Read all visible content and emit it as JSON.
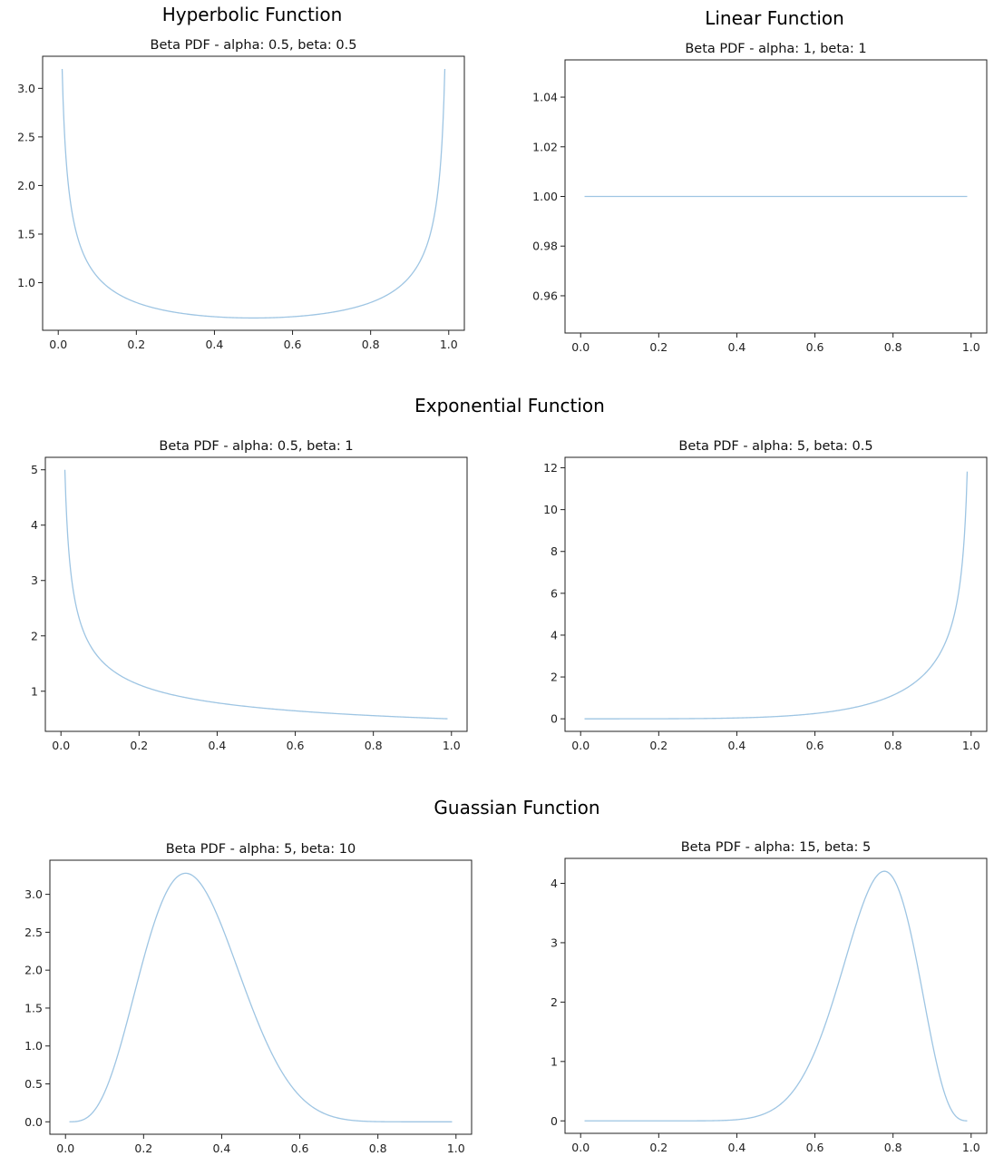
{
  "headings": {
    "hyperbolic": "Hyperbolic Function",
    "linear": "Linear Function",
    "exponential": "Exponential Function",
    "gaussian": "Guassian Function"
  },
  "colors": {
    "line": "#9ec5e3",
    "axes": "#222222"
  },
  "chart_data": [
    {
      "type": "line",
      "title": "Beta PDF - alpha: 0.5, beta: 0.5",
      "alpha": 0.5,
      "beta": 0.5,
      "xlabel": "",
      "ylabel": "",
      "x_range": [
        0.01,
        0.99
      ],
      "xlim": [
        -0.04,
        1.04
      ],
      "ylim": [
        0.51,
        3.33
      ],
      "xticks": [
        0.0,
        0.2,
        0.4,
        0.6,
        0.8,
        1.0
      ],
      "xtick_labels": [
        "0.0",
        "0.2",
        "0.4",
        "0.6",
        "0.8",
        "1.0"
      ],
      "yticks": [
        1.0,
        1.5,
        2.0,
        2.5,
        3.0
      ],
      "ytick_labels": [
        "1.0",
        "1.5",
        "2.0",
        "2.5",
        "3.0"
      ],
      "grid": false
    },
    {
      "type": "line",
      "title": "Beta PDF - alpha: 1, beta: 1",
      "alpha": 1,
      "beta": 1,
      "xlabel": "",
      "ylabel": "",
      "x_range": [
        0.01,
        0.99
      ],
      "xlim": [
        -0.04,
        1.04
      ],
      "ylim": [
        0.945,
        1.055
      ],
      "xticks": [
        0.0,
        0.2,
        0.4,
        0.6,
        0.8,
        1.0
      ],
      "xtick_labels": [
        "0.0",
        "0.2",
        "0.4",
        "0.6",
        "0.8",
        "1.0"
      ],
      "yticks": [
        0.96,
        0.98,
        1.0,
        1.02,
        1.04
      ],
      "ytick_labels": [
        "0.96",
        "0.98",
        "1.00",
        "1.02",
        "1.04"
      ],
      "grid": false
    },
    {
      "type": "line",
      "title": "Beta PDF - alpha: 0.5, beta: 1",
      "alpha": 0.5,
      "beta": 1,
      "xlabel": "",
      "ylabel": "",
      "x_range": [
        0.01,
        0.99
      ],
      "xlim": [
        -0.04,
        1.04
      ],
      "ylim": [
        0.275,
        5.225
      ],
      "xticks": [
        0.0,
        0.2,
        0.4,
        0.6,
        0.8,
        1.0
      ],
      "xtick_labels": [
        "0.0",
        "0.2",
        "0.4",
        "0.6",
        "0.8",
        "1.0"
      ],
      "yticks": [
        1,
        2,
        3,
        4,
        5
      ],
      "ytick_labels": [
        "1",
        "2",
        "3",
        "4",
        "5"
      ],
      "grid": false
    },
    {
      "type": "line",
      "title": "Beta PDF - alpha: 5, beta: 0.5",
      "alpha": 5,
      "beta": 0.5,
      "xlabel": "",
      "ylabel": "",
      "x_range": [
        0.01,
        0.99
      ],
      "xlim": [
        -0.04,
        1.04
      ],
      "ylim": [
        -0.6,
        12.5
      ],
      "xticks": [
        0.0,
        0.2,
        0.4,
        0.6,
        0.8,
        1.0
      ],
      "xtick_labels": [
        "0.0",
        "0.2",
        "0.4",
        "0.6",
        "0.8",
        "1.0"
      ],
      "yticks": [
        0,
        2,
        4,
        6,
        8,
        10,
        12
      ],
      "ytick_labels": [
        "0",
        "2",
        "4",
        "6",
        "8",
        "10",
        "12"
      ],
      "grid": false
    },
    {
      "type": "line",
      "title": "Beta PDF - alpha: 5, beta: 10",
      "alpha": 5,
      "beta": 10,
      "xlabel": "",
      "ylabel": "",
      "x_range": [
        0.01,
        0.99
      ],
      "xlim": [
        -0.04,
        1.04
      ],
      "ylim": [
        -0.164,
        3.45
      ],
      "xticks": [
        0.0,
        0.2,
        0.4,
        0.6,
        0.8,
        1.0
      ],
      "xtick_labels": [
        "0.0",
        "0.2",
        "0.4",
        "0.6",
        "0.8",
        "1.0"
      ],
      "yticks": [
        0.0,
        0.5,
        1.0,
        1.5,
        2.0,
        2.5,
        3.0
      ],
      "ytick_labels": [
        "0.0",
        "0.5",
        "1.0",
        "1.5",
        "2.0",
        "2.5",
        "3.0"
      ],
      "grid": false
    },
    {
      "type": "line",
      "title": "Beta PDF - alpha: 15, beta: 5",
      "alpha": 15,
      "beta": 5,
      "xlabel": "",
      "ylabel": "",
      "x_range": [
        0.01,
        0.99
      ],
      "xlim": [
        -0.04,
        1.04
      ],
      "ylim": [
        -0.21,
        4.42
      ],
      "xticks": [
        0.0,
        0.2,
        0.4,
        0.6,
        0.8,
        1.0
      ],
      "xtick_labels": [
        "0.0",
        "0.2",
        "0.4",
        "0.6",
        "0.8",
        "1.0"
      ],
      "yticks": [
        0,
        1,
        2,
        3,
        4
      ],
      "ytick_labels": [
        "0",
        "1",
        "2",
        "3",
        "4"
      ],
      "grid": false
    }
  ]
}
